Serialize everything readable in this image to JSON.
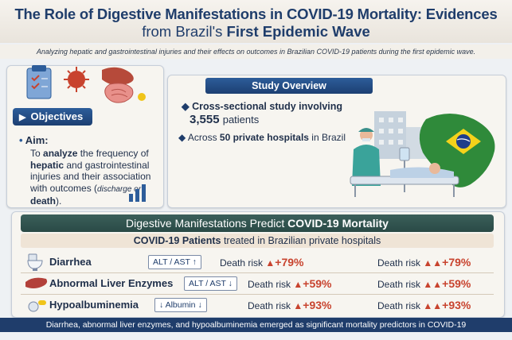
{
  "header": {
    "title_line1": "The Role of Digestive Manifestations in COVID-19 Mortality: Evidences",
    "title_line2_prefix": "from Brazil's ",
    "title_line2_bold": "First Epidemic Wave",
    "subtitle": "Analyzing hepatic and gastrointestinal injuries and their effects on outcomes in Brazilian COVID-19 patients during the first epidemic wave."
  },
  "objectives": {
    "heading": "Objectives",
    "aim_label": "Aim:",
    "aim_text_1": "To ",
    "aim_bold_1": "analyze",
    "aim_text_2": " the frequency of ",
    "aim_bold_2": "hepatic",
    "aim_text_3": " and gastrointestinal injuries and their association with outcomes (",
    "aim_italic": "discharge or",
    "aim_bold_3": "death",
    "aim_text_4": ")."
  },
  "study": {
    "heading": "Study Overview",
    "cross_sectional": "Cross-sectional study involving",
    "patient_count": "3,555",
    "patient_unit": "patients",
    "across_prefix": "Across ",
    "across_bold": "50 private hospitals",
    "across_suffix": " in Brazil"
  },
  "manifestations": {
    "heading_prefix": "Digestive Manifestations Predict ",
    "heading_bold": "COVID-19 Mortality",
    "subheading_bold": "COVID-19 Patients",
    "subheading_rest": " treated in Brazilian private hospitals",
    "death_risk_label": "Death risk",
    "rows": [
      {
        "name": "Diarrhea",
        "marker": "ALT / AST ↑",
        "pct": "+79%"
      },
      {
        "name": "Abnormal Liver Enzymes",
        "marker": "ALT / AST ↓",
        "pct": "+59%"
      },
      {
        "name": "Hypoalbuminemia",
        "marker": "↓ Albumin ↓",
        "pct": "+93%"
      }
    ]
  },
  "footer": "Diarrhea, abnormal liver enzymes, and hypoalbuminemia emerged as significant mortality predictors in COVID-19",
  "colors": {
    "navy": "#1f3d6b",
    "accent_red": "#c8432e",
    "teal_header": "#2a4a46"
  }
}
